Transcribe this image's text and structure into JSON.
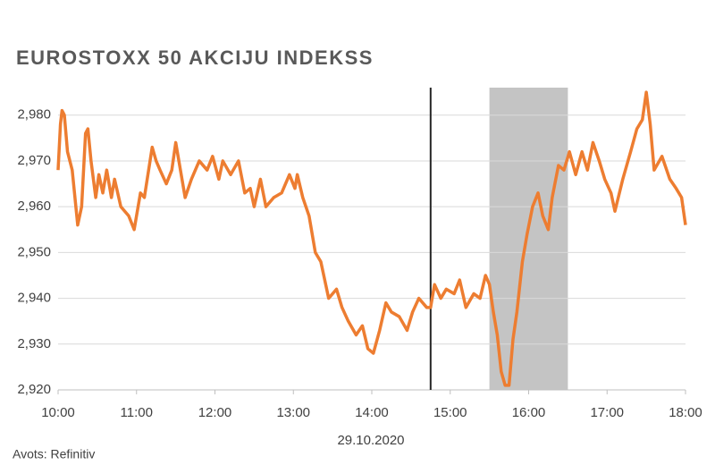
{
  "chart_data": {
    "type": "line",
    "title": "EUROSTOXX 50 AKCIJU INDEKSS",
    "x_label": "29.10.2020",
    "source": "Avots: Refinitiv",
    "xlim": [
      10,
      18
    ],
    "xticks": [
      {
        "value": 10,
        "label": "10:00"
      },
      {
        "value": 11,
        "label": "11:00"
      },
      {
        "value": 12,
        "label": "12:00"
      },
      {
        "value": 13,
        "label": "13:00"
      },
      {
        "value": 14,
        "label": "14:00"
      },
      {
        "value": 15,
        "label": "15:00"
      },
      {
        "value": 16,
        "label": "16:00"
      },
      {
        "value": 17,
        "label": "17:00"
      },
      {
        "value": 18,
        "label": "18:00"
      }
    ],
    "ylim": [
      2920,
      2986
    ],
    "yticks": [
      {
        "value": 2920,
        "label": "2,920"
      },
      {
        "value": 2930,
        "label": "2,930"
      },
      {
        "value": 2940,
        "label": "2,940"
      },
      {
        "value": 2950,
        "label": "2,950"
      },
      {
        "value": 2960,
        "label": "2,960"
      },
      {
        "value": 2970,
        "label": "2,970"
      },
      {
        "value": 2980,
        "label": "2,980"
      }
    ],
    "grid": true,
    "vertical_line": 14.75,
    "shaded_range": [
      15.5,
      16.5
    ],
    "series": [
      {
        "color": "#ed7d31",
        "x": [
          10.0,
          10.03,
          10.05,
          10.08,
          10.12,
          10.18,
          10.25,
          10.3,
          10.35,
          10.38,
          10.42,
          10.48,
          10.52,
          10.57,
          10.62,
          10.68,
          10.72,
          10.8,
          10.9,
          10.97,
          11.05,
          11.1,
          11.2,
          11.25,
          11.3,
          11.38,
          11.45,
          11.5,
          11.57,
          11.62,
          11.7,
          11.8,
          11.9,
          11.97,
          12.05,
          12.1,
          12.2,
          12.3,
          12.38,
          12.45,
          12.5,
          12.58,
          12.65,
          12.75,
          12.85,
          12.95,
          13.02,
          13.05,
          13.12,
          13.2,
          13.28,
          13.35,
          13.45,
          13.55,
          13.62,
          13.7,
          13.8,
          13.88,
          13.95,
          14.02,
          14.1,
          14.18,
          14.25,
          14.35,
          14.45,
          14.52,
          14.6,
          14.7,
          14.75,
          14.8,
          14.88,
          14.95,
          15.05,
          15.12,
          15.2,
          15.3,
          15.38,
          15.45,
          15.5,
          15.55,
          15.6,
          15.65,
          15.7,
          15.75,
          15.8,
          15.85,
          15.92,
          15.98,
          16.05,
          16.12,
          16.18,
          16.25,
          16.3,
          16.38,
          16.45,
          16.52,
          16.6,
          16.68,
          16.75,
          16.82,
          16.9,
          16.97,
          17.05,
          17.1,
          17.2,
          17.3,
          17.38,
          17.45,
          17.5,
          17.55,
          17.6,
          17.7,
          17.8,
          17.88,
          17.95,
          18.0
        ],
        "values": [
          2968,
          2978,
          2981,
          2980,
          2972,
          2968,
          2956,
          2960,
          2976,
          2977,
          2970,
          2962,
          2967,
          2963,
          2968,
          2962,
          2966,
          2960,
          2958,
          2955,
          2963,
          2962,
          2973,
          2970,
          2968,
          2965,
          2968,
          2974,
          2967,
          2962,
          2966,
          2970,
          2968,
          2971,
          2966,
          2970,
          2967,
          2970,
          2963,
          2964,
          2960,
          2966,
          2960,
          2962,
          2963,
          2967,
          2964,
          2967,
          2962,
          2958,
          2950,
          2948,
          2940,
          2942,
          2938,
          2935,
          2932,
          2934,
          2929,
          2928,
          2933,
          2939,
          2937,
          2936,
          2933,
          2937,
          2940,
          2938,
          2938,
          2943,
          2940,
          2942,
          2941,
          2944,
          2938,
          2941,
          2940,
          2945,
          2943,
          2937,
          2932,
          2924,
          2921,
          2921,
          2931,
          2937,
          2948,
          2954,
          2960,
          2963,
          2958,
          2955,
          2962,
          2969,
          2968,
          2972,
          2967,
          2972,
          2968,
          2974,
          2970,
          2966,
          2963,
          2959,
          2966,
          2972,
          2977,
          2979,
          2985,
          2978,
          2968,
          2971,
          2966,
          2964,
          2962,
          2956
        ]
      }
    ]
  }
}
